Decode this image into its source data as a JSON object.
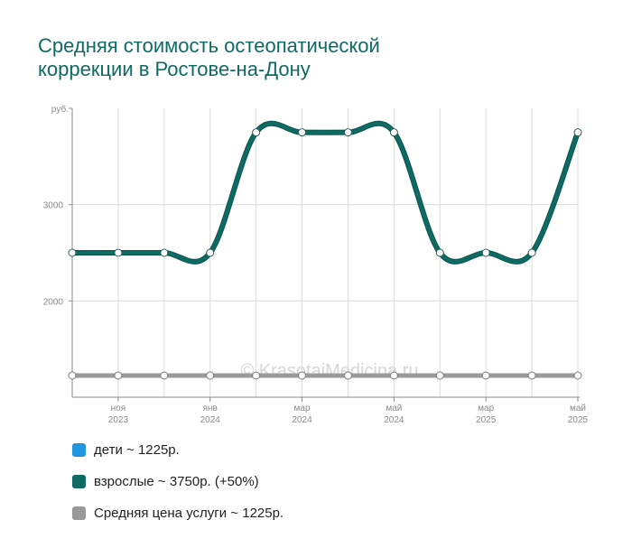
{
  "title_lines": [
    "Средняя стоимость остеопатической",
    "коррекции в Ростове-на-Дону"
  ],
  "watermark": "© KrasotaiMedicina.ru",
  "chart_data": {
    "type": "line",
    "title": "Средняя стоимость остеопатической коррекции в Ростове-на-Дону",
    "ylabel": "руб.",
    "ylim": [
      1000,
      4000
    ],
    "yticks": [
      {
        "value": 2000,
        "label": "2000"
      },
      {
        "value": 3000,
        "label": "3000"
      }
    ],
    "x_count": 12,
    "x_tick_labels": [
      {
        "index": 1,
        "month": "ноя",
        "year": "2023"
      },
      {
        "index": 3,
        "month": "янв",
        "year": "2024"
      },
      {
        "index": 5,
        "month": "мар",
        "year": "2024"
      },
      {
        "index": 7,
        "month": "май",
        "year": "2024"
      },
      {
        "index": 9,
        "month": "мар",
        "year": "2025"
      },
      {
        "index": 11,
        "month": "май",
        "year": "2025"
      }
    ],
    "grid": true,
    "series": [
      {
        "name": "дети ~ 1225р.",
        "color": "#2196e0",
        "values": [
          1225,
          1225,
          1225,
          1225,
          1225,
          1225,
          1225,
          1225,
          1225,
          1225,
          1225,
          1225
        ]
      },
      {
        "name": "взрослые ~ 3750р. (+50%)",
        "color": "#0e6b63",
        "values": [
          2500,
          2500,
          2500,
          2500,
          3750,
          3750,
          3750,
          3750,
          2500,
          2500,
          2500,
          3750
        ]
      },
      {
        "name": "Средняя цена услуги ~ 1225р.",
        "color": "#9a9a9a",
        "values": [
          1225,
          1225,
          1225,
          1225,
          1225,
          1225,
          1225,
          1225,
          1225,
          1225,
          1225,
          1225
        ]
      }
    ]
  }
}
